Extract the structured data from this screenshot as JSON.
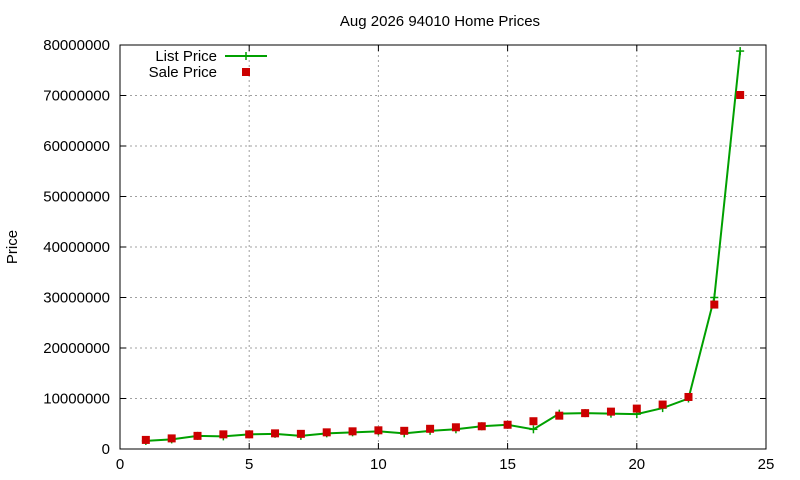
{
  "chart_data": {
    "type": "line",
    "title": "Aug 2026 94010 Home Prices",
    "xlabel": "",
    "ylabel": "Price",
    "xlim": [
      0,
      25
    ],
    "ylim": [
      0,
      80000000
    ],
    "x_ticks": [
      "0",
      "5",
      "10",
      "15",
      "20",
      "25"
    ],
    "y_ticks": [
      "0",
      "10000000",
      "20000000",
      "30000000",
      "40000000",
      "50000000",
      "60000000",
      "70000000",
      "80000000"
    ],
    "grid": true,
    "legend_position": "top-left",
    "x": [
      1,
      2,
      3,
      4,
      5,
      6,
      7,
      8,
      9,
      10,
      11,
      12,
      13,
      14,
      15,
      16,
      17,
      18,
      19,
      20,
      21,
      22,
      23,
      24
    ],
    "series": [
      {
        "name": "List Price",
        "style": "linespoints",
        "marker": "plus",
        "color": "#00a000",
        "values": [
          1600000,
          1900000,
          2600000,
          2500000,
          2900000,
          3000000,
          2600000,
          3100000,
          3300000,
          3500000,
          3100000,
          3600000,
          3900000,
          4500000,
          4800000,
          3900000,
          7000000,
          7100000,
          7000000,
          6900000,
          8100000,
          10000000,
          30000000,
          78800000
        ]
      },
      {
        "name": "Sale Price",
        "style": "points",
        "marker": "square",
        "color": "#cc0000",
        "values": [
          1800000,
          2100000,
          2600000,
          2900000,
          2900000,
          3100000,
          3000000,
          3300000,
          3500000,
          3700000,
          3600000,
          4000000,
          4300000,
          4500000,
          4800000,
          5500000,
          6600000,
          7100000,
          7400000,
          8000000,
          8800000,
          10300000,
          28600000,
          70100000
        ]
      }
    ]
  }
}
